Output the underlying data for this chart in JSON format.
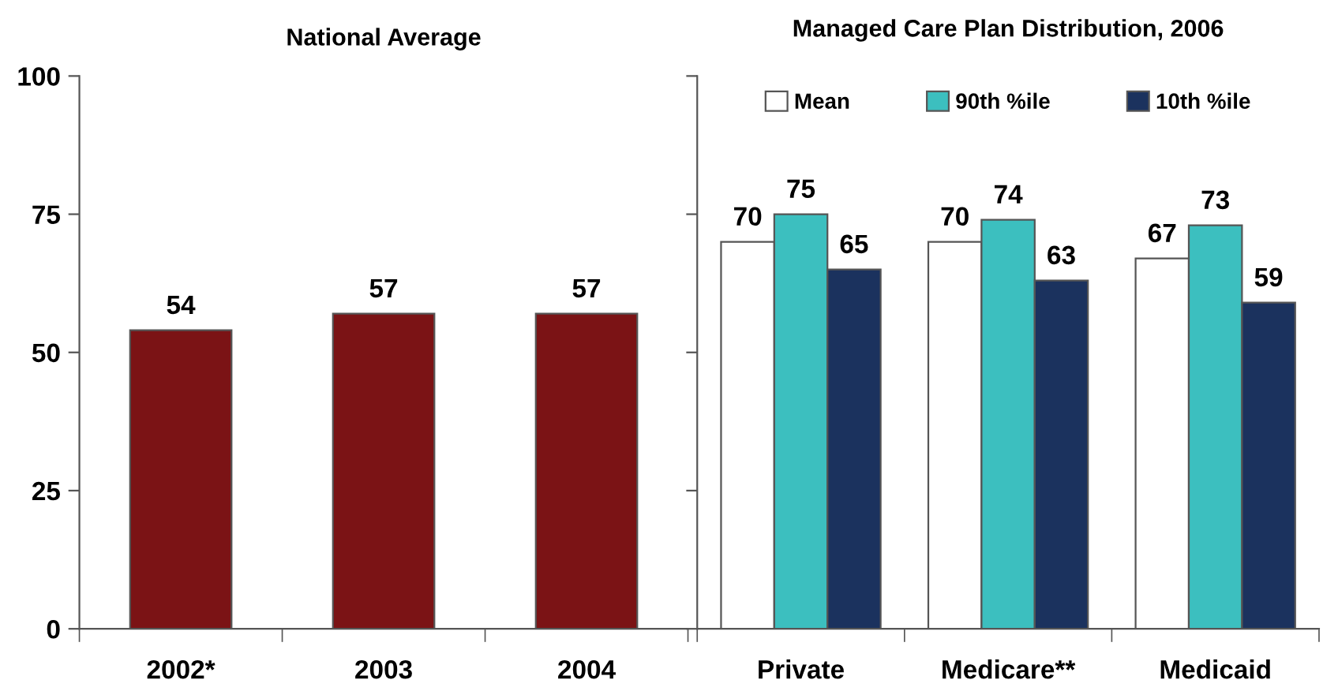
{
  "chart_data": [
    {
      "type": "bar",
      "title": "National Average",
      "categories": [
        "2002*",
        "2003",
        "2004"
      ],
      "series": [
        {
          "color": "#7b1315",
          "values": [
            54,
            57,
            57
          ]
        }
      ],
      "ylim": [
        0,
        100
      ],
      "yticks": [
        0,
        25,
        50,
        75,
        100
      ],
      "data_labels": true,
      "grid": false,
      "legend": false
    },
    {
      "type": "bar",
      "title": "Managed Care Plan Distribution, 2006",
      "categories": [
        "Private",
        "Medicare**",
        "Medicaid"
      ],
      "series": [
        {
          "name": "Mean",
          "color": "#ffffff",
          "values": [
            70,
            70,
            67
          ]
        },
        {
          "name": "90th %ile",
          "color": "#3cbfbf",
          "values": [
            75,
            74,
            73
          ]
        },
        {
          "name": "10th %ile",
          "color": "#1b325e",
          "values": [
            65,
            63,
            59
          ]
        }
      ],
      "ylim": [
        0,
        100
      ],
      "yticks": [
        0,
        25,
        50,
        75,
        100
      ],
      "tick_labels": "x",
      "data_labels": true,
      "grid": false,
      "legend": "top"
    }
  ]
}
